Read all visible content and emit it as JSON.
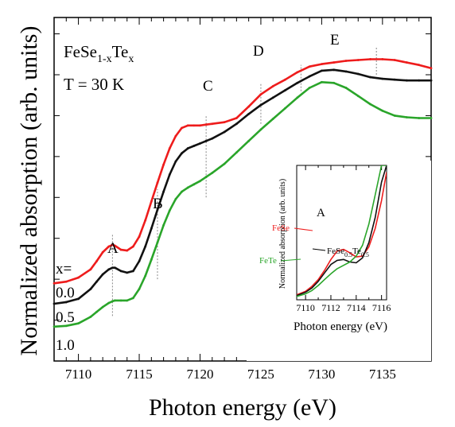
{
  "chart_data": [
    {
      "type": "line",
      "title": "",
      "xlabel": "Photon energy (eV)",
      "ylabel": "Normalized absorption (arb. units)",
      "xlim": [
        7108,
        7139
      ],
      "ylim": [
        0,
        4.2
      ],
      "xticks": [
        7110,
        7115,
        7120,
        7125,
        7130,
        7135
      ],
      "grid": false,
      "legend": "none",
      "x": [
        7108,
        7109,
        7110,
        7111,
        7111.5,
        7112,
        7112.5,
        7112.8,
        7113,
        7113.5,
        7114,
        7114.5,
        7115,
        7115.5,
        7116,
        7116.5,
        7117,
        7117.5,
        7118,
        7118.5,
        7119,
        7119.5,
        7120,
        7120.5,
        7121,
        7122,
        7123,
        7124,
        7125,
        7126,
        7127,
        7128,
        7129,
        7130,
        7131,
        7132,
        7133,
        7134,
        7135,
        7136,
        7137,
        7138,
        7139
      ],
      "series": [
        {
          "name": "0.0",
          "color": "#ee1c1c",
          "values": [
            0.95,
            0.97,
            1.02,
            1.12,
            1.22,
            1.33,
            1.4,
            1.42,
            1.41,
            1.36,
            1.35,
            1.4,
            1.52,
            1.72,
            1.95,
            2.18,
            2.4,
            2.6,
            2.75,
            2.85,
            2.88,
            2.88,
            2.88,
            2.89,
            2.9,
            2.92,
            2.97,
            3.11,
            3.26,
            3.36,
            3.44,
            3.53,
            3.6,
            3.63,
            3.65,
            3.67,
            3.68,
            3.69,
            3.69,
            3.68,
            3.65,
            3.62,
            3.58
          ]
        },
        {
          "name": "0.5",
          "color": "#111111",
          "values": [
            0.7,
            0.72,
            0.76,
            0.88,
            0.97,
            1.06,
            1.12,
            1.14,
            1.14,
            1.1,
            1.08,
            1.1,
            1.22,
            1.4,
            1.62,
            1.85,
            2.07,
            2.28,
            2.44,
            2.54,
            2.6,
            2.63,
            2.66,
            2.69,
            2.72,
            2.8,
            2.9,
            3.02,
            3.13,
            3.22,
            3.31,
            3.4,
            3.48,
            3.55,
            3.56,
            3.54,
            3.51,
            3.47,
            3.45,
            3.44,
            3.43,
            3.43,
            3.43
          ]
        },
        {
          "name": "1.0",
          "color": "#2aa52a",
          "values": [
            0.42,
            0.43,
            0.46,
            0.54,
            0.6,
            0.66,
            0.71,
            0.73,
            0.74,
            0.74,
            0.74,
            0.77,
            0.88,
            1.04,
            1.24,
            1.45,
            1.66,
            1.84,
            1.98,
            2.07,
            2.12,
            2.16,
            2.2,
            2.25,
            2.3,
            2.41,
            2.55,
            2.69,
            2.83,
            2.96,
            3.09,
            3.22,
            3.34,
            3.41,
            3.4,
            3.34,
            3.24,
            3.14,
            3.06,
            3.0,
            2.98,
            2.97,
            2.97
          ]
        }
      ],
      "annotations": {
        "compound": "FeSe",
        "compound_sub1": "1-x",
        "compound_mid": "Te",
        "compound_sub2": "x",
        "temperature": "T = 30 K",
        "x_label": "x=",
        "peaks": [
          {
            "label": "A",
            "x": 7112.8
          },
          {
            "label": "B",
            "x": 7116.5
          },
          {
            "label": "C",
            "x": 7120.5
          },
          {
            "label": "D",
            "x": 7125
          },
          {
            "label": "E",
            "x": 7130
          }
        ]
      }
    },
    {
      "type": "line",
      "title": "",
      "xlabel": "Photon energy (eV)",
      "ylabel": "Normalized absorption (arb. units)",
      "xlim": [
        7109.3,
        7116.4
      ],
      "ylim": [
        0,
        1.6
      ],
      "xticks": [
        7110,
        7112,
        7114,
        7116
      ],
      "legend": "annotated",
      "x": [
        7109.3,
        7110,
        7110.5,
        7111,
        7111.5,
        7112,
        7112.5,
        7113,
        7113.5,
        7114,
        7114.5,
        7115,
        7115.5,
        7116,
        7116.4
      ],
      "series": [
        {
          "name": "FeSe",
          "color": "#ee1c1c",
          "values": [
            0.06,
            0.1,
            0.16,
            0.24,
            0.35,
            0.48,
            0.58,
            0.6,
            0.56,
            0.51,
            0.52,
            0.63,
            0.85,
            1.18,
            1.52
          ]
        },
        {
          "name": "FeSe0.5Te0.5",
          "color": "#111111",
          "values": [
            0.05,
            0.09,
            0.14,
            0.22,
            0.32,
            0.42,
            0.47,
            0.48,
            0.45,
            0.44,
            0.5,
            0.68,
            0.98,
            1.4,
            1.6
          ]
        },
        {
          "name": "FeTe",
          "color": "#2aa52a",
          "values": [
            0.04,
            0.07,
            0.11,
            0.17,
            0.24,
            0.31,
            0.37,
            0.41,
            0.45,
            0.52,
            0.65,
            0.9,
            1.25,
            1.6,
            1.6
          ]
        }
      ],
      "annotations": {
        "peak_label": "A",
        "fese_label": "FeSe",
        "mixed_main": "FeSe",
        "mixed_sub1": "0.5",
        "mixed_mid": "Te",
        "mixed_sub2": "0.5",
        "fete_label": "FeTe"
      }
    }
  ]
}
